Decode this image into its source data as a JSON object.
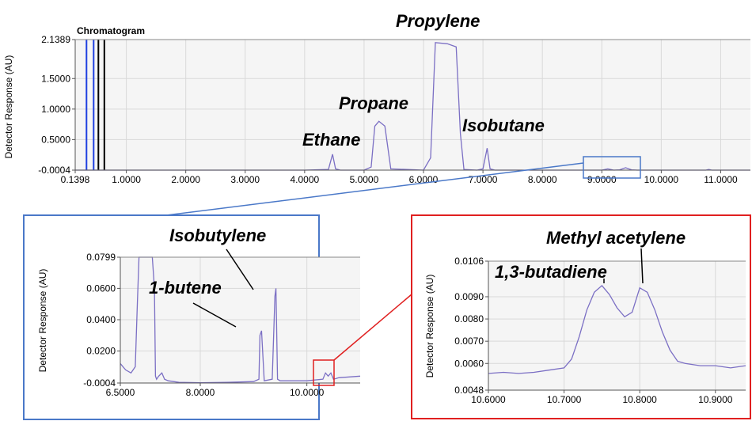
{
  "colors": {
    "trace": "#7b6fc4",
    "grid": "#d9d9d9",
    "plot_bg": "#f5f5f5",
    "blue_box": "#4a78c8",
    "red_box": "#e02020",
    "marker_blue": "#1f3fe0",
    "marker_black": "#000000"
  },
  "chart_data": [
    {
      "id": "main",
      "type": "line",
      "title": "Chromatogram",
      "xlabel": "",
      "ylabel": "Detector Response (AU)",
      "xlim": [
        0.1398,
        11.5
      ],
      "ylim": [
        -0.0004,
        2.1389
      ],
      "x_ticks": [
        "0.1398",
        "1.0000",
        "2.0000",
        "3.0000",
        "4.0000",
        "5.0000",
        "6.0000",
        "7.0000",
        "8.0000",
        "9.0000",
        "10.0000",
        "11.0000"
      ],
      "y_ticks": [
        "-0.0004",
        "0.5000",
        "1.0000",
        "1.5000",
        "2.1389"
      ],
      "grid": true,
      "markers": [
        {
          "x": 0.33,
          "color": "blue"
        },
        {
          "x": 0.45,
          "color": "blue"
        },
        {
          "x": 0.53,
          "color": "black"
        },
        {
          "x": 0.63,
          "color": "black"
        }
      ],
      "series": [
        {
          "x": [
            0.1398,
            4.0,
            4.4,
            4.47,
            4.52,
            4.6,
            5.0,
            5.12,
            5.18,
            5.25,
            5.35,
            5.45,
            6.0,
            6.12,
            6.2,
            6.4,
            6.55,
            6.62,
            6.68,
            6.9,
            7.0,
            7.07,
            7.12,
            7.2,
            8.5,
            9.0,
            9.1,
            9.2,
            9.3,
            9.4,
            9.5,
            9.6,
            10.5,
            10.75,
            10.8,
            10.85,
            11.5
          ],
          "y": [
            0.0,
            0.0,
            0.01,
            0.26,
            0.02,
            0.0,
            0.0,
            0.05,
            0.72,
            0.8,
            0.72,
            0.02,
            0.0,
            0.2,
            2.09,
            2.07,
            2.02,
            0.6,
            0.01,
            0.0,
            0.02,
            0.36,
            0.02,
            0.0,
            0.0,
            0.0,
            0.02,
            0.0,
            0.005,
            0.04,
            0.005,
            0.0,
            0.0,
            0.0,
            0.01,
            0.0,
            0.0
          ]
        }
      ],
      "annotations": [
        "Propylene",
        "Propane",
        "Isobutane",
        "Ethane"
      ]
    },
    {
      "id": "zoom1",
      "type": "line",
      "xlabel": "",
      "ylabel": "Detector Response (AU)",
      "xlim": [
        6.5,
        11.0
      ],
      "ylim": [
        -0.0004,
        0.0799
      ],
      "x_ticks": [
        "6.5000",
        "8.0000",
        "10.0000"
      ],
      "y_ticks": [
        "-0.0004",
        "0.0200",
        "0.0400",
        "0.0600",
        "0.0799"
      ],
      "grid": true,
      "series": [
        {
          "x": [
            6.5,
            6.6,
            6.7,
            6.78,
            6.82,
            6.85,
            6.87,
            7.0,
            7.1,
            7.14,
            7.16,
            7.18,
            7.22,
            7.28,
            7.33,
            7.4,
            7.6,
            8.0,
            8.5,
            9.0,
            9.1,
            9.12,
            9.15,
            9.2,
            9.35,
            9.4,
            9.42,
            9.45,
            9.5,
            10.0,
            10.3,
            10.35,
            10.4,
            10.45,
            10.5,
            10.6,
            11.0
          ],
          "y": [
            0.012,
            0.008,
            0.006,
            0.01,
            0.05,
            0.08,
            0.08,
            0.08,
            0.08,
            0.06,
            0.004,
            0.002,
            0.004,
            0.006,
            0.002,
            0.001,
            0.0,
            -0.0002,
            0.0,
            0.0005,
            0.002,
            0.03,
            0.033,
            0.001,
            0.002,
            0.055,
            0.06,
            0.002,
            0.001,
            0.001,
            0.002,
            0.006,
            0.004,
            0.006,
            0.002,
            0.003,
            0.004
          ]
        }
      ],
      "annotations": [
        "Isobutylene",
        "1-butene"
      ]
    },
    {
      "id": "zoom2",
      "type": "line",
      "xlabel": "",
      "ylabel": "Detector Response (AU)",
      "xlim": [
        10.6,
        10.94
      ],
      "ylim": [
        0.0048,
        0.0106
      ],
      "x_ticks": [
        "10.6000",
        "10.7000",
        "10.8000",
        "10.9000"
      ],
      "y_ticks": [
        "0.0048",
        "0.0060",
        "0.0070",
        "0.0080",
        "0.0090",
        "0.0106"
      ],
      "grid": true,
      "series": [
        {
          "x": [
            10.6,
            10.62,
            10.64,
            10.66,
            10.68,
            10.7,
            10.71,
            10.72,
            10.73,
            10.74,
            10.75,
            10.76,
            10.77,
            10.78,
            10.79,
            10.8,
            10.81,
            10.82,
            10.83,
            10.84,
            10.85,
            10.86,
            10.88,
            10.9,
            10.92,
            10.94
          ],
          "y": [
            0.00555,
            0.0056,
            0.00555,
            0.0056,
            0.0057,
            0.0058,
            0.0062,
            0.0072,
            0.0084,
            0.0092,
            0.0095,
            0.0091,
            0.0085,
            0.0081,
            0.0083,
            0.0094,
            0.0092,
            0.0084,
            0.0074,
            0.0066,
            0.0061,
            0.006,
            0.0059,
            0.0059,
            0.0058,
            0.0059
          ]
        }
      ],
      "annotations": [
        "Methyl acetylene",
        "1,3-butadiene"
      ]
    }
  ]
}
